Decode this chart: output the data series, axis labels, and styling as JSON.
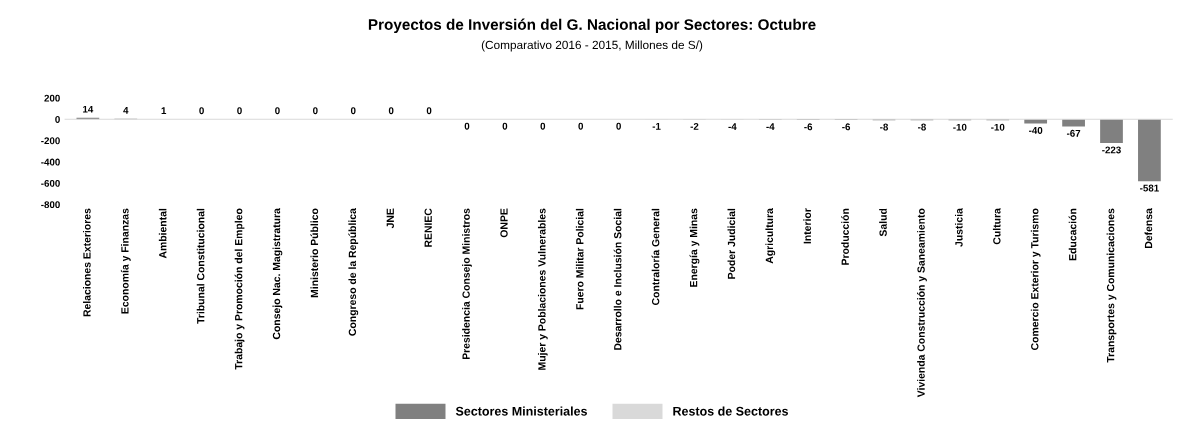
{
  "chart_data": {
    "type": "bar",
    "title": "Proyectos de Inversión del G. Nacional por Sectores: Octubre",
    "subtitle": "(Comparativo 2016 - 2015, Millones de S/)",
    "categories": [
      "Relaciones Exteriores",
      "Economía y Finanzas",
      "Ambiental",
      "Tribunal Constitucional",
      "Trabajo y Promoción del Empleo",
      "Consejo Nac. Magistratura",
      "Ministerio Público",
      "Congreso de la República",
      "JNE",
      "RENIEC",
      "Presidencia Consejo Ministros",
      "ONPE",
      "Mujer y Poblaciones Vulnerables",
      "Fuero Militar Policial",
      "Desarrollo e Inclusión Social",
      "Contraloría General",
      "Energía y Minas",
      "Poder Judicial",
      "Agricultura",
      "Interior",
      "Producción",
      "Salud",
      "Vivienda Construcción y Saneamiento",
      "Justicia",
      "Cultura",
      "Comercio Exterior y Turismo",
      "Educación",
      "Transportes y Comunicaciones",
      "Defensa"
    ],
    "series": [
      {
        "name": "Sectores Ministeriales",
        "color": "#808080",
        "values": [
          14,
          4,
          1,
          null,
          0.2,
          null,
          null,
          null,
          null,
          null,
          -0.2,
          null,
          -0.2,
          null,
          -0.2,
          null,
          -2,
          null,
          -4,
          -6,
          -6,
          -8,
          -8,
          -10,
          -10,
          -40,
          -67,
          -223,
          -581
        ],
        "value_labels": [
          "14",
          "4",
          "1",
          null,
          "0",
          null,
          null,
          null,
          null,
          null,
          "0",
          null,
          "0",
          null,
          "0",
          null,
          "-2",
          null,
          "-4",
          "-6",
          "-6",
          "-8",
          "-8",
          "-10",
          "-10",
          "-40",
          "-67",
          "-223",
          "-581"
        ]
      },
      {
        "name": "Restos de Sectores",
        "color": "#d9d9d9",
        "values": [
          null,
          null,
          null,
          0.2,
          null,
          0.2,
          0.2,
          0.2,
          0.2,
          0.2,
          null,
          -0.2,
          null,
          -0.2,
          null,
          -1,
          null,
          -4,
          null,
          null,
          null,
          null,
          null,
          null,
          null,
          null,
          null,
          null,
          null
        ],
        "value_labels": [
          null,
          null,
          null,
          "0",
          null,
          "0",
          "0",
          "0",
          "0",
          "0",
          null,
          "0",
          null,
          "0",
          null,
          "-1",
          null,
          "-4",
          null,
          null,
          null,
          null,
          null,
          null,
          null,
          null,
          null,
          null,
          null
        ]
      }
    ],
    "ylim": [
      -800,
      200
    ],
    "yticks": [
      -800,
      -600,
      -400,
      -200,
      0,
      200
    ],
    "legend": "bottom"
  }
}
